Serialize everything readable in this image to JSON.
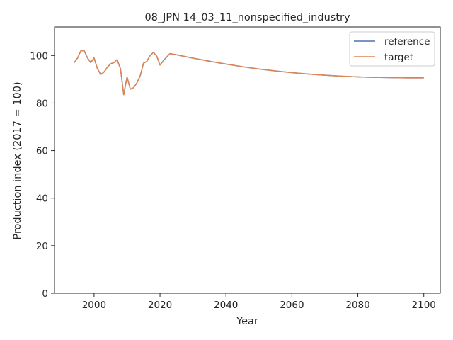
{
  "chart_data": {
    "type": "line",
    "title": "08_JPN 14_03_11_nonspecified_industry",
    "xlabel": "Year",
    "ylabel": "Production index (2017 = 100)",
    "xlim": [
      1988,
      2105
    ],
    "ylim": [
      0,
      112
    ],
    "xticks": [
      2000,
      2020,
      2040,
      2060,
      2080,
      2100
    ],
    "yticks": [
      0,
      20,
      40,
      60,
      80,
      100
    ],
    "grid": false,
    "legend_position": "top-right",
    "x": [
      1994,
      1995,
      1996,
      1997,
      1998,
      1999,
      2000,
      2001,
      2002,
      2003,
      2004,
      2005,
      2006,
      2007,
      2008,
      2009,
      2010,
      2011,
      2012,
      2013,
      2014,
      2015,
      2016,
      2017,
      2018,
      2019,
      2020,
      2021,
      2022,
      2023,
      2025,
      2030,
      2035,
      2040,
      2045,
      2050,
      2055,
      2060,
      2065,
      2070,
      2075,
      2080,
      2085,
      2090,
      2095,
      2100
    ],
    "series": [
      {
        "name": "reference",
        "color": "#4c72b0",
        "values": [
          97.0,
          99.0,
          102.0,
          102.0,
          99.0,
          97.0,
          99.0,
          94.5,
          92.0,
          93.0,
          95.0,
          96.5,
          97.0,
          98.3,
          94.5,
          83.5,
          91.0,
          85.8,
          86.5,
          88.5,
          91.5,
          96.8,
          97.5,
          100.0,
          101.3,
          99.8,
          96.0,
          97.8,
          99.3,
          100.8,
          100.3,
          98.9,
          97.6,
          96.4,
          95.3,
          94.3,
          93.5,
          92.8,
          92.2,
          91.7,
          91.3,
          91.0,
          90.8,
          90.7,
          90.6,
          90.6
        ]
      },
      {
        "name": "target",
        "color": "#dd8452",
        "values": [
          97.0,
          99.0,
          102.0,
          102.0,
          99.0,
          97.0,
          99.0,
          94.5,
          92.0,
          93.0,
          95.0,
          96.5,
          97.0,
          98.3,
          94.5,
          83.5,
          91.0,
          85.8,
          86.5,
          88.5,
          91.5,
          96.8,
          97.5,
          100.0,
          101.3,
          99.8,
          96.0,
          97.8,
          99.3,
          100.8,
          100.3,
          98.9,
          97.6,
          96.4,
          95.3,
          94.3,
          93.5,
          92.8,
          92.2,
          91.7,
          91.3,
          91.0,
          90.8,
          90.7,
          90.6,
          90.6
        ]
      }
    ]
  }
}
